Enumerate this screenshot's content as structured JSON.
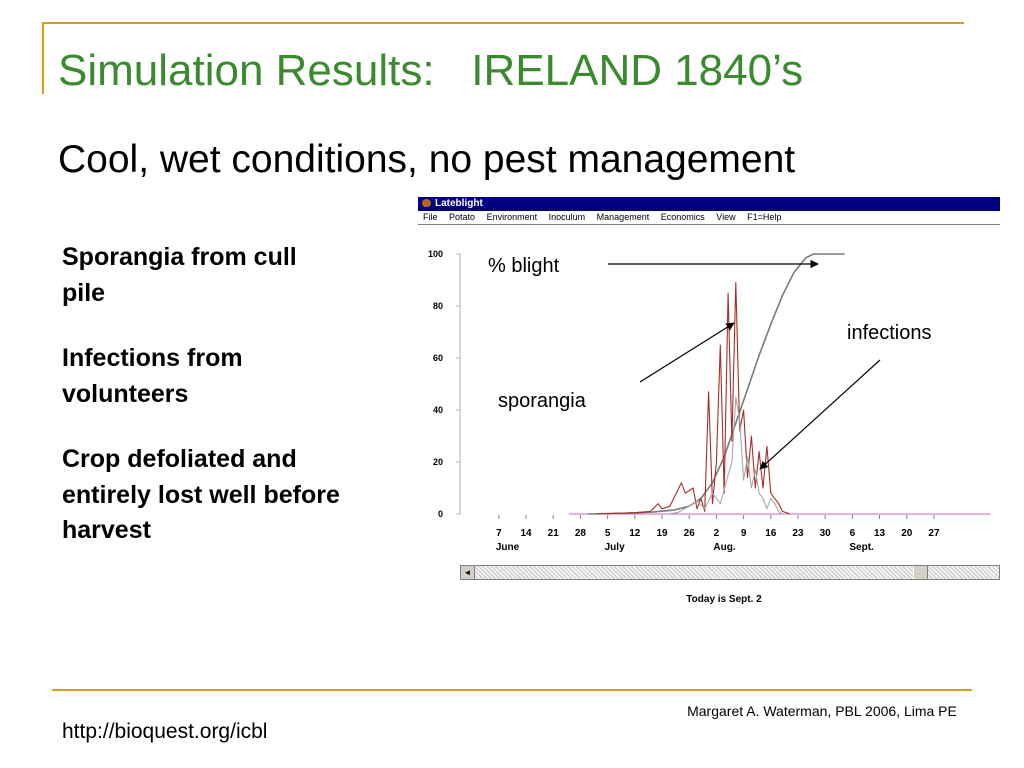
{
  "slide": {
    "title": "Simulation Results:   IRELAND 1840’s",
    "subtitle": "Cool, wet conditions, no pest management",
    "bullets": [
      "Sporangia from cull pile",
      "Infections from volunteers",
      "Crop defoliated and entirely lost well before harvest"
    ],
    "footer_url": "http://bioquest.org/icbl",
    "footer_credit": "Margaret A. Waterman, PBL 2006, Lima PE"
  },
  "app": {
    "title": "Lateblight",
    "menu": [
      "File",
      "Potato",
      "Environment",
      "Inoculum",
      "Management",
      "Economics",
      "View",
      "F1=Help"
    ],
    "status": "Today is Sept. 2",
    "scroll_left_glyph": "◄"
  },
  "colors": {
    "title_green": "#3a8a2e",
    "accent_rule": "#d4a017",
    "titlebar_blue": "#000080",
    "blight_line": "#7a7a7a",
    "sporangia_line": "#a0302a",
    "infections_line": "#a8a8a8",
    "baseline_line": "#cc66cc"
  },
  "chart_data": {
    "type": "line",
    "ylim": [
      0,
      100
    ],
    "yticks": [
      0,
      20,
      40,
      60,
      80,
      100
    ],
    "xlim": [
      -3,
      136
    ],
    "xticks": [
      {
        "day": 7,
        "label": "7"
      },
      {
        "day": 14,
        "label": "14"
      },
      {
        "day": 21,
        "label": "21"
      },
      {
        "day": 28,
        "label": "28"
      },
      {
        "day": 35,
        "label": "5"
      },
      {
        "day": 42,
        "label": "12"
      },
      {
        "day": 49,
        "label": "19"
      },
      {
        "day": 56,
        "label": "26"
      },
      {
        "day": 63,
        "label": "2"
      },
      {
        "day": 70,
        "label": "9"
      },
      {
        "day": 77,
        "label": "16"
      },
      {
        "day": 84,
        "label": "23"
      },
      {
        "day": 91,
        "label": "30"
      },
      {
        "day": 98,
        "label": "6"
      },
      {
        "day": 105,
        "label": "13"
      },
      {
        "day": 112,
        "label": "20"
      },
      {
        "day": 119,
        "label": "27"
      }
    ],
    "months": [
      {
        "day": 7,
        "label": "June"
      },
      {
        "day": 35,
        "label": "July"
      },
      {
        "day": 63,
        "label": "Aug."
      },
      {
        "day": 98,
        "label": "Sept."
      }
    ],
    "annotations": [
      {
        "id": "blight",
        "text": "% blight"
      },
      {
        "id": "infections",
        "text": "infections"
      },
      {
        "id": "sporangia",
        "text": "sporangia"
      }
    ],
    "series": [
      {
        "key": "blight",
        "color": "#7a7a7a",
        "points": [
          [
            30,
            0
          ],
          [
            40,
            0.3
          ],
          [
            47,
            0.8
          ],
          [
            52,
            1.5
          ],
          [
            56,
            3
          ],
          [
            59,
            6
          ],
          [
            62,
            12
          ],
          [
            65,
            22
          ],
          [
            68,
            35
          ],
          [
            71,
            48
          ],
          [
            74,
            61
          ],
          [
            77,
            73
          ],
          [
            80,
            84
          ],
          [
            83,
            93
          ],
          [
            86,
            98.5
          ],
          [
            88,
            100
          ],
          [
            96,
            100
          ]
        ]
      },
      {
        "key": "sporangia",
        "color": "#a0302a",
        "points": [
          [
            32,
            0
          ],
          [
            38,
            0.3
          ],
          [
            42,
            0.5
          ],
          [
            46,
            1
          ],
          [
            48,
            4
          ],
          [
            49,
            2
          ],
          [
            51,
            3
          ],
          [
            53,
            9
          ],
          [
            54,
            12
          ],
          [
            55,
            8
          ],
          [
            57,
            10
          ],
          [
            58,
            2
          ],
          [
            59,
            6
          ],
          [
            60,
            1
          ],
          [
            61,
            47
          ],
          [
            62,
            4
          ],
          [
            63,
            20
          ],
          [
            64,
            65
          ],
          [
            65,
            8
          ],
          [
            66,
            85
          ],
          [
            67,
            28
          ],
          [
            68,
            89
          ],
          [
            69,
            32
          ],
          [
            70,
            40
          ],
          [
            71,
            14
          ],
          [
            72,
            30
          ],
          [
            73,
            10
          ],
          [
            74,
            24
          ],
          [
            75,
            10
          ],
          [
            76,
            26
          ],
          [
            77,
            8
          ],
          [
            78,
            6
          ],
          [
            79,
            4
          ],
          [
            80,
            1
          ],
          [
            82,
            0
          ]
        ]
      },
      {
        "key": "infections",
        "color": "#a8a8a8",
        "points": [
          [
            50,
            0
          ],
          [
            53,
            0.5
          ],
          [
            56,
            3
          ],
          [
            58,
            5
          ],
          [
            60,
            2
          ],
          [
            62,
            8
          ],
          [
            64,
            4
          ],
          [
            66,
            15
          ],
          [
            67,
            20
          ],
          [
            68,
            45
          ],
          [
            69,
            36
          ],
          [
            70,
            13
          ],
          [
            71,
            22
          ],
          [
            72,
            10
          ],
          [
            73,
            17
          ],
          [
            74,
            8
          ],
          [
            75,
            6
          ],
          [
            76,
            2
          ],
          [
            77,
            6
          ],
          [
            78,
            4
          ],
          [
            79,
            1
          ],
          [
            80,
            0
          ]
        ]
      }
    ]
  }
}
